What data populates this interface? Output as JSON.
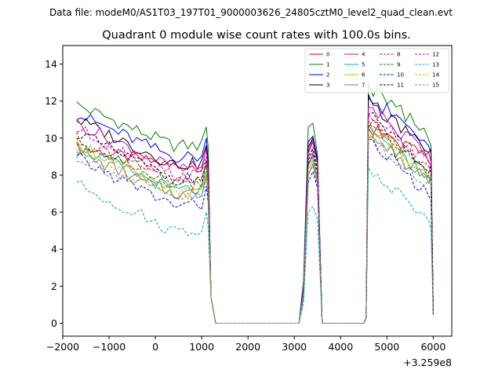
{
  "chart_data": {
    "type": "line",
    "suptitle": "Data file: modeM0/AS1T03_197T01_9000003626_24805cztM0_level2_quad_clean.evt",
    "title": "Quadrant 0 module wise count rates with 100.0s bins.",
    "xlabel": "",
    "ylabel": "",
    "x_offset_label": "+3.259e8",
    "xlim": [
      -2000,
      6400
    ],
    "ylim": [
      -0.7,
      15
    ],
    "xticks": [
      -2000,
      -1000,
      0,
      1000,
      2000,
      3000,
      4000,
      5000,
      6000
    ],
    "xtick_labels": [
      "−2000",
      "−1000",
      "0",
      "1000",
      "2000",
      "3000",
      "4000",
      "5000",
      "6000"
    ],
    "yticks": [
      0,
      2,
      4,
      6,
      8,
      10,
      12,
      14
    ],
    "ytick_labels": [
      "0",
      "2",
      "4",
      "6",
      "8",
      "10",
      "12",
      "14"
    ],
    "legend_location": "upper-right",
    "legend_columns": 4,
    "segments": {
      "seg1_x": [
        -1700,
        -1600,
        -1500,
        -1400,
        -1300,
        -1200,
        -1100,
        -1000,
        -900,
        -800,
        -700,
        -600,
        -500,
        -400,
        -300,
        -200,
        -100,
        0,
        100,
        200,
        300,
        400,
        500,
        600,
        700,
        800,
        900,
        1000,
        1100,
        1140,
        1200,
        1300
      ],
      "gap1_x": [
        1300,
        2000,
        3000,
        3100
      ],
      "seg2_x": [
        3100,
        3200,
        3300,
        3400,
        3500,
        3600
      ],
      "gap2_x": [
        3600,
        4000,
        4500
      ],
      "seg3_x": [
        4500,
        4550,
        4600,
        4700,
        4800,
        4900,
        5000,
        5100,
        5200,
        5300,
        5400,
        5500,
        5600,
        5700,
        5800,
        5900,
        5950,
        6000
      ]
    },
    "series": [
      {
        "name": "0",
        "color": "#e00000",
        "dash": "solid",
        "lo": 8.5,
        "hi": 9.5,
        "spike": [
          1.7,
          9.2,
          10,
          8.8,
          4.5
        ],
        "last": 0.5
      },
      {
        "name": "1",
        "color": "#008000",
        "dash": "solid",
        "lo": 9.6,
        "hi": 11.8,
        "spike": [
          2.3,
          10.6,
          10.8,
          9.1,
          4.6
        ],
        "last": 0.6
      },
      {
        "name": "2",
        "color": "#0000ff",
        "dash": "solid",
        "lo": 9.0,
        "hi": 11.3,
        "spike": [
          2.0,
          9.8,
          10.1,
          8.9,
          4.5
        ],
        "last": 0.5
      },
      {
        "name": "3",
        "color": "#000000",
        "dash": "solid",
        "lo": 8.6,
        "hi": 11.0,
        "spike": [
          1.8,
          9.5,
          10,
          8.7,
          4.4
        ],
        "last": 0.5
      },
      {
        "name": "4",
        "color": "#c000c0",
        "dash": "solid",
        "lo": 8.4,
        "hi": 10.8,
        "spike": [
          1.8,
          9.2,
          9.8,
          8.6,
          4.4
        ],
        "last": 0.5
      },
      {
        "name": "5",
        "color": "#00b0b0",
        "dash": "solid",
        "lo": 7.2,
        "hi": 9.5,
        "spike": [
          1.6,
          8.5,
          9.0,
          7.8,
          4.0
        ],
        "last": 0.5
      },
      {
        "name": "6",
        "color": "#c0c000",
        "dash": "solid",
        "lo": 7.0,
        "hi": 9.8,
        "spike": [
          1.6,
          8.3,
          8.8,
          7.6,
          4.0
        ],
        "last": 0.5
      },
      {
        "name": "7",
        "color": "#808080",
        "dash": "solid",
        "lo": 7.0,
        "hi": 9.2,
        "spike": [
          1.5,
          8.0,
          8.6,
          7.5,
          3.9
        ],
        "last": 0.5
      },
      {
        "name": "8",
        "color": "#e00000",
        "dash": "dashed",
        "lo": 7.6,
        "hi": 10.0,
        "spike": [
          1.6,
          8.6,
          9.2,
          8.1,
          4.1
        ],
        "last": 0.5
      },
      {
        "name": "9",
        "color": "#008000",
        "dash": "dashed",
        "lo": 7.6,
        "hi": 9.8,
        "spike": [
          1.6,
          8.6,
          9.1,
          8.0,
          4.1
        ],
        "last": 0.5
      },
      {
        "name": "10",
        "color": "#0000ff",
        "dash": "dashed",
        "lo": 6.4,
        "hi": 8.9,
        "spike": [
          1.4,
          7.6,
          8.2,
          7.3,
          3.8
        ],
        "last": 0.5
      },
      {
        "name": "11",
        "color": "#000000",
        "dash": "dashed",
        "lo": 7.8,
        "hi": 10.3,
        "spike": [
          1.7,
          8.8,
          9.4,
          8.3,
          4.2
        ],
        "last": 0.5
      },
      {
        "name": "12",
        "color": "#c000c0",
        "dash": "dashed",
        "lo": 8.0,
        "hi": 10.5,
        "spike": [
          1.7,
          9.0,
          9.5,
          8.4,
          4.2
        ],
        "last": 0.5
      },
      {
        "name": "13",
        "color": "#00b0b0",
        "dash": "dashed",
        "lo": 5.0,
        "hi": 7.5,
        "spike": [
          1.1,
          6.0,
          6.3,
          5.6,
          3.0
        ],
        "last": 0.4
      },
      {
        "name": "14",
        "color": "#c0c000",
        "dash": "dashed",
        "lo": 7.2,
        "hi": 9.3,
        "spike": [
          1.6,
          8.3,
          8.8,
          7.7,
          4.0
        ],
        "last": 0.5
      },
      {
        "name": "15",
        "color": "#808080",
        "dash": "dashed",
        "lo": 6.8,
        "hi": 9.0,
        "spike": [
          1.5,
          8.0,
          8.5,
          7.5,
          3.9
        ],
        "last": 0.5
      }
    ]
  }
}
